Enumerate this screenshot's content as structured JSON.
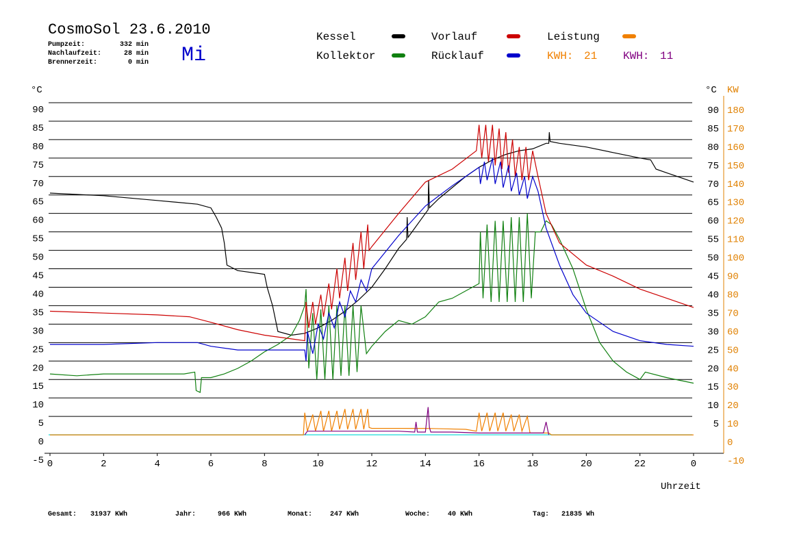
{
  "chart_data": {
    "type": "line",
    "title": "CosmoSol 23.6.2010",
    "weekday": "Mi",
    "info": [
      {
        "label": "Pumpzeit:",
        "value": "332 min"
      },
      {
        "label": "Nachlaufzeit:",
        "value": "28 min"
      },
      {
        "label": "Brennerzeit:",
        "value": "0 min"
      }
    ],
    "ylabel": "°C",
    "y2label": "KW",
    "xlabel": "Uhrzeit",
    "xlim": [
      0,
      24
    ],
    "xticks": [
      0,
      2,
      4,
      6,
      8,
      10,
      12,
      14,
      16,
      18,
      20,
      22,
      {
        "value": 24,
        "label": "0"
      }
    ],
    "ylim": [
      -5,
      90
    ],
    "yticks": [
      90,
      85,
      80,
      75,
      70,
      65,
      60,
      55,
      50,
      45,
      40,
      35,
      30,
      25,
      20,
      15,
      10,
      5,
      0,
      -5
    ],
    "yticks_right": [
      90,
      85,
      80,
      75,
      70,
      65,
      60,
      55,
      50,
      45,
      40,
      35,
      30,
      25,
      20,
      15,
      10,
      5
    ],
    "y2lim": [
      -10,
      180
    ],
    "y2ticks": [
      180,
      170,
      160,
      150,
      140,
      130,
      120,
      110,
      100,
      90,
      80,
      70,
      60,
      50,
      40,
      30,
      20,
      10,
      0,
      -10
    ],
    "grid": true,
    "zero_line_color": "#40e0e0",
    "y2_color": "#e08000",
    "series": [
      {
        "name": "Kessel",
        "color": "#000000",
        "x": [
          0,
          2,
          4,
          5.5,
          6,
          6.2,
          6.4,
          6.5,
          6.6,
          7,
          8,
          8.1,
          8.3,
          8.5,
          9,
          9.5,
          10,
          10.5,
          11,
          11.5,
          12,
          12.5,
          13,
          13.3,
          13.32,
          13.35,
          13.5,
          14,
          14.1,
          14.12,
          14.15,
          14.5,
          15,
          15.5,
          16,
          16.5,
          17,
          17.5,
          18,
          18.5,
          18.6,
          18.62,
          18.65,
          19,
          20,
          21,
          22,
          22.4,
          22.6,
          23,
          24
        ],
        "values": [
          65.5,
          64.8,
          63.5,
          62.5,
          61.5,
          59,
          56,
          52,
          46,
          44.5,
          43.5,
          40,
          35,
          28,
          27,
          27.5,
          29,
          31,
          33.5,
          36.5,
          40,
          45,
          50.5,
          53,
          59,
          53.5,
          55,
          60,
          61,
          69,
          61.5,
          64,
          67,
          70,
          72.5,
          74.5,
          76,
          77,
          77.5,
          79,
          79,
          82,
          79.5,
          79,
          78,
          76.5,
          75,
          74.5,
          72,
          71,
          68.5
        ]
      },
      {
        "name": "Kollektor",
        "color": "#108010",
        "x": [
          0,
          1,
          2,
          3,
          4,
          5,
          5.4,
          5.45,
          5.6,
          5.65,
          6,
          6.5,
          7,
          7.5,
          8,
          8.5,
          9,
          9.3,
          9.5,
          9.55,
          9.65,
          9.8,
          9.95,
          10.1,
          10.25,
          10.4,
          10.55,
          10.7,
          10.85,
          11,
          11.15,
          11.3,
          11.45,
          11.6,
          11.8,
          12,
          12.5,
          13,
          13.5,
          14,
          14.5,
          15,
          15.5,
          16,
          16.05,
          16.15,
          16.3,
          16.45,
          16.6,
          16.75,
          16.9,
          17.05,
          17.2,
          17.35,
          17.5,
          17.65,
          17.8,
          17.95,
          18.1,
          18.3,
          18.5,
          18.7,
          19,
          19.5,
          20,
          20.5,
          21,
          21.5,
          22,
          22.2,
          23,
          24
        ],
        "values": [
          16.5,
          16,
          16.5,
          16.5,
          16.5,
          16.5,
          17,
          12,
          11.5,
          15.5,
          15.5,
          16.5,
          18,
          20,
          22.5,
          24.5,
          27,
          31,
          35,
          39.5,
          18,
          33,
          15,
          34,
          15,
          35,
          15,
          35,
          16,
          35,
          16,
          35,
          17,
          35,
          22,
          24,
          28,
          31,
          30,
          32,
          36,
          37,
          39,
          41,
          55,
          37,
          57,
          36,
          58,
          36,
          58,
          36,
          59,
          36,
          59,
          36,
          60,
          37,
          55,
          55,
          58,
          57,
          53,
          45,
          34,
          25,
          20,
          17,
          15,
          17,
          15.5,
          14
        ]
      },
      {
        "name": "Vorlauf",
        "color": "#cc0000",
        "x": [
          0,
          2,
          4,
          5.2,
          6,
          7,
          8,
          9,
          9.5,
          9.55,
          9.65,
          9.8,
          9.9,
          10.1,
          10.2,
          10.4,
          10.5,
          10.7,
          10.8,
          11,
          11.1,
          11.3,
          11.4,
          11.6,
          11.7,
          11.85,
          11.9,
          12,
          13,
          14,
          15,
          15.9,
          16,
          16.1,
          16.25,
          16.35,
          16.5,
          16.6,
          16.75,
          16.85,
          17,
          17.1,
          17.25,
          17.35,
          17.5,
          17.6,
          17.75,
          17.85,
          18,
          18.2,
          18.5,
          19,
          20,
          21,
          22,
          23,
          24
        ],
        "values": [
          33.5,
          33,
          32.5,
          32,
          30.5,
          28.5,
          27,
          26,
          25.5,
          36,
          29,
          36,
          30,
          38,
          32,
          41,
          34,
          45,
          37,
          48,
          39,
          52,
          42,
          55,
          45,
          57,
          50,
          51,
          60,
          68.5,
          72,
          77,
          84,
          75,
          84,
          74,
          84,
          73,
          83,
          72,
          82,
          71,
          80,
          70,
          78,
          69,
          78,
          69,
          77,
          70,
          60,
          52,
          46,
          43,
          39.5,
          37,
          34.5
        ]
      },
      {
        "name": "Rücklauf",
        "color": "#0000cc",
        "x": [
          0,
          2,
          4,
          5.5,
          6,
          7,
          8,
          9,
          9.5,
          9.55,
          9.6,
          9.8,
          10,
          10.2,
          10.4,
          10.6,
          10.8,
          11,
          11.2,
          11.4,
          11.6,
          11.8,
          12,
          13,
          14,
          15,
          16,
          16.05,
          16.2,
          16.3,
          16.5,
          16.6,
          16.8,
          16.9,
          17.1,
          17.2,
          17.4,
          17.5,
          17.7,
          17.8,
          18,
          18.2,
          18.5,
          19,
          19.5,
          20,
          21,
          22,
          23,
          24
        ],
        "values": [
          24.5,
          24.5,
          25,
          25,
          24,
          23,
          23,
          23,
          23,
          20,
          28,
          22,
          30,
          26,
          33,
          29,
          36,
          32,
          39,
          36,
          42,
          39,
          45,
          54,
          62,
          67.5,
          72.5,
          68,
          74,
          69,
          75,
          68,
          74,
          67,
          73,
          66,
          71,
          65,
          70,
          64,
          70,
          66,
          56,
          46,
          38,
          33,
          28,
          25.5,
          24.5,
          24
        ]
      },
      {
        "name": "Leistung",
        "color": "#f08000",
        "axis": "y2",
        "x": [
          0,
          9.45,
          9.5,
          9.6,
          9.8,
          9.9,
          10.1,
          10.2,
          10.4,
          10.5,
          10.7,
          10.8,
          11,
          11.1,
          11.3,
          11.4,
          11.6,
          11.7,
          11.85,
          11.9,
          12,
          14,
          15.5,
          15.9,
          16,
          16.1,
          16.3,
          16.4,
          16.6,
          16.7,
          16.9,
          17,
          17.2,
          17.3,
          17.5,
          17.6,
          17.8,
          17.9,
          18,
          18.6,
          18.7,
          24
        ],
        "values": [
          0,
          0,
          12,
          2,
          11,
          2,
          13,
          2,
          13,
          2,
          13,
          3,
          14,
          3,
          14,
          3,
          14,
          3,
          14,
          4,
          3.5,
          3.5,
          3,
          2,
          12,
          2,
          12,
          2,
          12,
          2,
          12,
          2,
          11,
          2,
          11,
          2,
          10,
          1,
          1,
          1,
          0,
          0
        ]
      },
      {
        "color": "#800080",
        "axis": "y2",
        "x": [
          9.5,
          9.6,
          10,
          12,
          13,
          13.6,
          13.65,
          13.7,
          14,
          14.1,
          14.15,
          14.2,
          15,
          16,
          18,
          18.4,
          18.5,
          18.6
        ],
        "values": [
          0,
          2,
          2,
          2,
          2,
          1.5,
          7,
          1.5,
          1.5,
          15,
          4,
          1.5,
          1.5,
          1,
          1,
          1,
          7,
          0
        ]
      }
    ],
    "kwh": [
      {
        "label": "KWH:",
        "value": 21,
        "color": "#f08000"
      },
      {
        "label": "KWH:",
        "value": 11,
        "color": "#800080"
      }
    ],
    "totals": [
      {
        "label": "Gesamt:",
        "value": "31937 KWh"
      },
      {
        "label": "Jahr:",
        "value": "966 KWh"
      },
      {
        "label": "Monat:",
        "value": "247 KWh"
      },
      {
        "label": "Woche:",
        "value": "40 KWh"
      },
      {
        "label": "Tag:",
        "value": "21835 Wh"
      }
    ]
  }
}
